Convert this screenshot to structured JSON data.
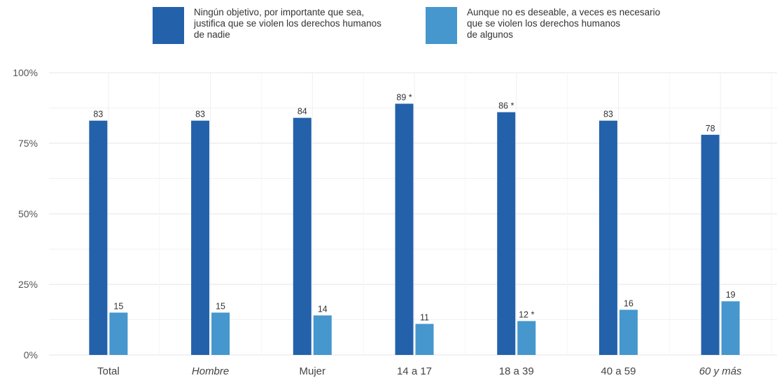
{
  "legend": [
    {
      "label": "Ningún objetivo, por importante que sea,\njustifica que se violen los derechos humanos\nde nadie",
      "color": "#2461ab"
    },
    {
      "label": "Aunque no es deseable, a veces es necesario\nque se violen los derechos humanos\nde algunos",
      "color": "#4597cd"
    }
  ],
  "chart_data": {
    "type": "bar",
    "categories": [
      "Total",
      "Hombre",
      "Mujer",
      "14 a 17",
      "18 a 39",
      "40 a 59",
      "60 y más"
    ],
    "italic_categories": [
      "Hombre",
      "60 y más"
    ],
    "series": [
      {
        "name": "Ningún objetivo, por importante que sea, justifica que se violen los derechos humanos de nadie",
        "values": [
          83,
          83,
          84,
          89,
          86,
          83,
          78
        ],
        "labels": [
          "83",
          "83",
          "84",
          "89 *",
          "86 *",
          "83",
          "78"
        ],
        "color": "#2461ab"
      },
      {
        "name": "Aunque no es deseable, a veces es necesario que se violen los derechos humanos de algunos",
        "values": [
          15,
          15,
          14,
          11,
          12,
          16,
          19
        ],
        "labels": [
          "15",
          "15",
          "14",
          "11",
          "12 *",
          "16",
          "19"
        ],
        "color": "#4597cd"
      }
    ],
    "y_ticks": [
      "0%",
      "25%",
      "50%",
      "75%",
      "100%"
    ],
    "ylim": [
      0,
      100
    ],
    "grid": true,
    "legend_position": "top"
  }
}
